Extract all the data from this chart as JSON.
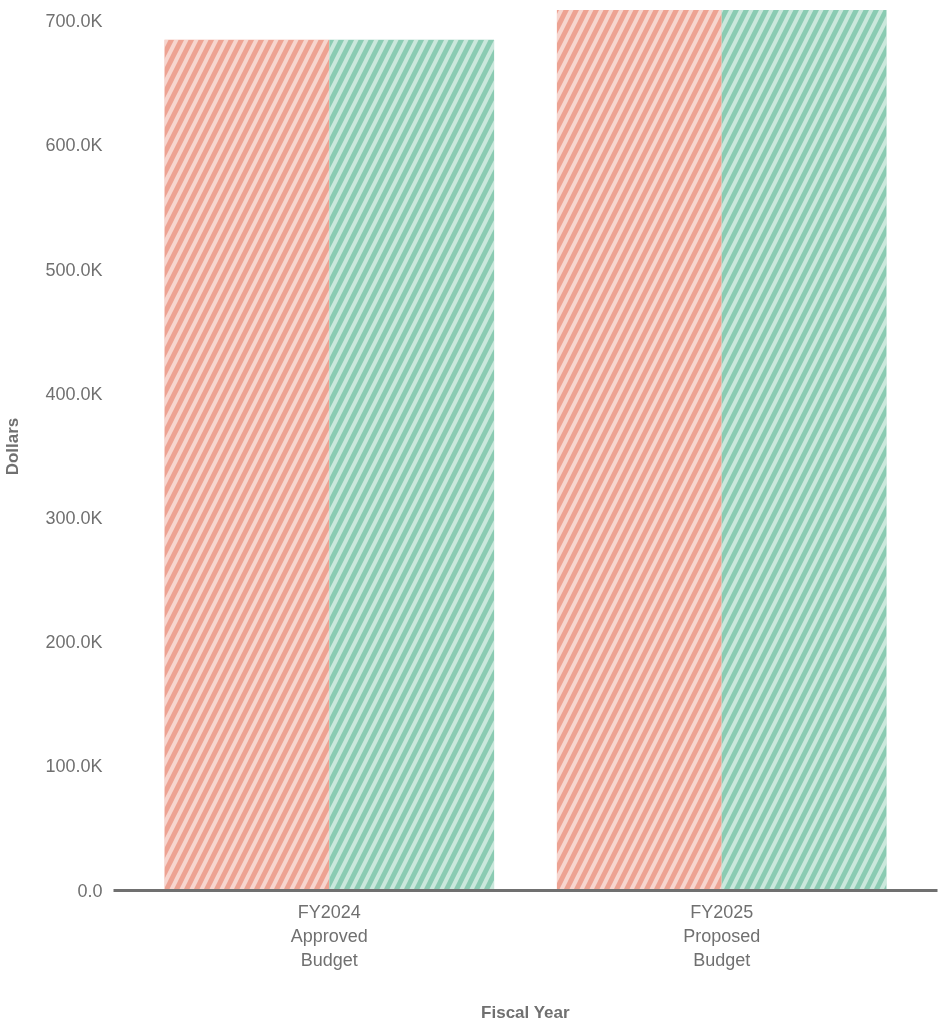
{
  "chart_data": {
    "type": "bar",
    "xlabel": "Fiscal Year",
    "ylabel": "Dollars",
    "categories": [
      "FY2024\nApproved\nBudget",
      "FY2025\nProposed\nBudget"
    ],
    "series": [
      {
        "color": "#eda292",
        "values": [
          685000,
          709000
        ]
      },
      {
        "color": "#8acbb2",
        "values": [
          685000,
          709000
        ]
      }
    ],
    "ylim": [
      0,
      715000
    ],
    "yticks": [
      {
        "value": 0,
        "label": "0.0"
      },
      {
        "value": 100000,
        "label": "100.0K"
      },
      {
        "value": 200000,
        "label": "200.0K"
      },
      {
        "value": 300000,
        "label": "300.0K"
      },
      {
        "value": 400000,
        "label": "400.0K"
      },
      {
        "value": 500000,
        "label": "500.0K"
      },
      {
        "value": 600000,
        "label": "600.0K"
      },
      {
        "value": 700000,
        "label": "700.0K"
      }
    ],
    "grid": false
  }
}
